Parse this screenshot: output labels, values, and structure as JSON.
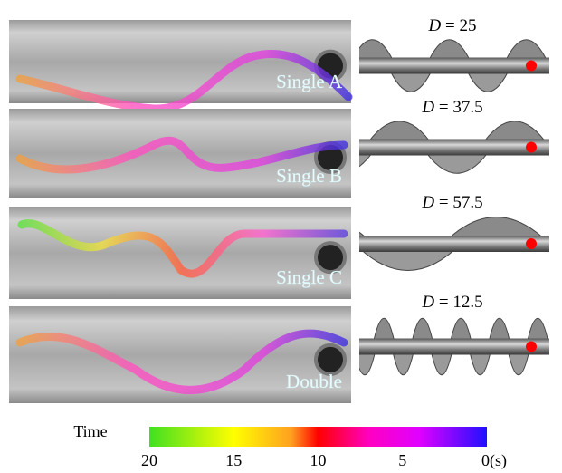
{
  "panels": [
    {
      "label": "Single A",
      "symbol": "D",
      "sign": "=",
      "value": 25
    },
    {
      "label": "Single B",
      "symbol": "D",
      "sign": "=",
      "value": 37.5
    },
    {
      "label": "Single C",
      "symbol": "D",
      "sign": "=",
      "value": 57.5
    },
    {
      "label": "Double",
      "symbol": "D",
      "sign": "=",
      "value": 12.5
    }
  ],
  "colorbar": {
    "title": "Time",
    "range": [
      20,
      0
    ],
    "ticks": [
      20,
      15,
      10,
      5,
      {
        "value": 0,
        "label": "0(s)"
      }
    ]
  }
}
